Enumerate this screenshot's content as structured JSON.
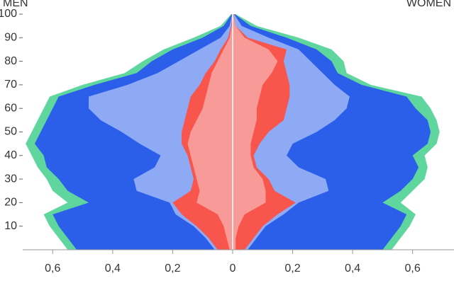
{
  "chart_data": {
    "type": "pyramid",
    "left_label": "MEN",
    "right_label": "WOMEN",
    "ages": [
      0,
      5,
      10,
      15,
      20,
      25,
      30,
      35,
      40,
      45,
      50,
      55,
      60,
      65,
      70,
      75,
      80,
      85,
      90,
      95,
      100
    ],
    "xlim": [
      -0.7,
      0.738
    ],
    "ylim": [
      0,
      106
    ],
    "xticks": [
      {
        "value": -0.6,
        "label": "0,6"
      },
      {
        "value": -0.4,
        "label": "0,4"
      },
      {
        "value": -0.2,
        "label": "0,2"
      },
      0,
      {
        "value": 0.2,
        "label": "0,2"
      },
      {
        "value": 0.4,
        "label": "0,4"
      },
      {
        "value": 0.6,
        "label": "0,6"
      }
    ],
    "yticks": [
      10,
      20,
      30,
      40,
      50,
      60,
      70,
      80,
      90,
      100
    ],
    "men": [
      {
        "color": "#5fd69e",
        "values": [
          0.55,
          0.58,
          0.61,
          0.63,
          0.55,
          0.6,
          0.62,
          0.65,
          0.67,
          0.69,
          0.67,
          0.65,
          0.63,
          0.61,
          0.5,
          0.36,
          0.3,
          0.23,
          0.13,
          0.04,
          0.005
        ]
      },
      {
        "color": "#2c5fe9",
        "values": [
          0.52,
          0.55,
          0.58,
          0.6,
          0.48,
          0.55,
          0.58,
          0.62,
          0.63,
          0.66,
          0.64,
          0.62,
          0.6,
          0.58,
          0.46,
          0.32,
          0.27,
          0.2,
          0.1,
          0.03,
          0.003
        ]
      },
      {
        "color": "#8eaaf5",
        "values": [
          0.06,
          0.09,
          0.13,
          0.19,
          0.21,
          0.32,
          0.33,
          0.26,
          0.24,
          0.31,
          0.37,
          0.44,
          0.48,
          0.48,
          0.35,
          0.25,
          0.18,
          0.11,
          0.04,
          0.01,
          0.002
        ]
      },
      {
        "color": "#f8554c",
        "values": [
          0.05,
          0.08,
          0.12,
          0.17,
          0.2,
          0.14,
          0.13,
          0.14,
          0.15,
          0.17,
          0.17,
          0.16,
          0.15,
          0.14,
          0.11,
          0.09,
          0.06,
          0.04,
          0.015,
          0.005,
          0.001
        ]
      },
      {
        "color": "#f89b98",
        "values": [
          0.01,
          0.02,
          0.03,
          0.05,
          0.12,
          0.11,
          0.12,
          0.13,
          0.14,
          0.15,
          0.14,
          0.12,
          0.1,
          0.09,
          0.08,
          0.07,
          0.05,
          0.03,
          0.01,
          0.003,
          0.001
        ]
      }
    ],
    "women": [
      {
        "color": "#5fd69e",
        "values": [
          0.53,
          0.56,
          0.59,
          0.61,
          0.56,
          0.6,
          0.64,
          0.65,
          0.64,
          0.68,
          0.69,
          0.68,
          0.66,
          0.63,
          0.46,
          0.38,
          0.37,
          0.33,
          0.22,
          0.08,
          0.01
        ]
      },
      {
        "color": "#2c5fe9",
        "values": [
          0.5,
          0.53,
          0.56,
          0.58,
          0.5,
          0.56,
          0.6,
          0.62,
          0.6,
          0.65,
          0.66,
          0.65,
          0.61,
          0.58,
          0.43,
          0.35,
          0.33,
          0.28,
          0.18,
          0.06,
          0.007
        ]
      },
      {
        "color": "#8eaaf5",
        "values": [
          0.05,
          0.08,
          0.11,
          0.17,
          0.22,
          0.32,
          0.31,
          0.22,
          0.18,
          0.2,
          0.28,
          0.34,
          0.38,
          0.39,
          0.34,
          0.3,
          0.26,
          0.22,
          0.12,
          0.03,
          0.005
        ]
      },
      {
        "color": "#f8554c",
        "values": [
          0.04,
          0.07,
          0.1,
          0.15,
          0.21,
          0.14,
          0.12,
          0.08,
          0.07,
          0.09,
          0.12,
          0.17,
          0.18,
          0.19,
          0.19,
          0.18,
          0.17,
          0.18,
          0.05,
          0.01,
          0.003
        ]
      },
      {
        "color": "#f89b98",
        "values": [
          0.01,
          0.01,
          0.02,
          0.04,
          0.11,
          0.11,
          0.1,
          0.07,
          0.06,
          0.06,
          0.07,
          0.08,
          0.08,
          0.09,
          0.1,
          0.13,
          0.15,
          0.12,
          0.04,
          0.01,
          0.002
        ]
      }
    ]
  }
}
